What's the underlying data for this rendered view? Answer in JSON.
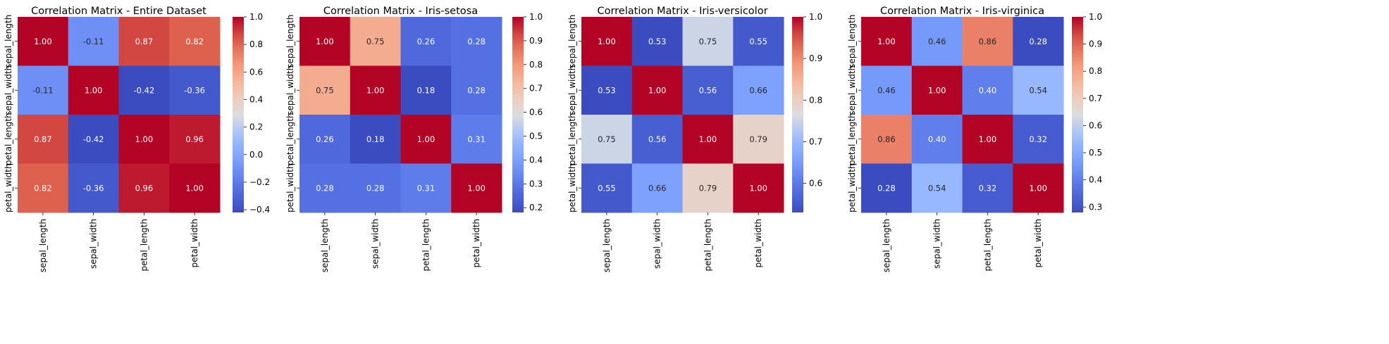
{
  "chart_data": [
    {
      "type": "heatmap",
      "title": "Correlation Matrix - Entire Dataset",
      "row_labels": [
        "sepal_length",
        "sepal_width",
        "petal_length",
        "petal_width"
      ],
      "col_labels": [
        "sepal_length",
        "sepal_width",
        "petal_length",
        "petal_width"
      ],
      "values": [
        [
          1.0,
          -0.11,
          0.87,
          0.82
        ],
        [
          -0.11,
          1.0,
          -0.42,
          -0.36
        ],
        [
          0.87,
          -0.42,
          1.0,
          0.96
        ],
        [
          0.82,
          -0.36,
          0.96,
          1.0
        ]
      ],
      "annotations": [
        [
          "1.00",
          "-0.11",
          "0.87",
          "0.82"
        ],
        [
          "-0.11",
          "1.00",
          "-0.42",
          "-0.36"
        ],
        [
          "0.87",
          "-0.42",
          "1.00",
          "0.96"
        ],
        [
          "0.82",
          "-0.36",
          "0.96",
          "1.00"
        ]
      ],
      "colormap": "coolwarm",
      "vmin": -0.42,
      "vmax": 1.0,
      "colorbar_ticks": [
        "1.0",
        "0.8",
        "0.6",
        "0.4",
        "0.2",
        "0.0",
        "−0.2",
        "−0.4"
      ],
      "colorbar_tick_values": [
        1.0,
        0.8,
        0.6,
        0.4,
        0.2,
        0.0,
        -0.2,
        -0.4
      ]
    },
    {
      "type": "heatmap",
      "title": "Correlation Matrix - Iris-setosa",
      "row_labels": [
        "sepal_length",
        "sepal_width",
        "petal_length",
        "petal_width"
      ],
      "col_labels": [
        "sepal_length",
        "sepal_width",
        "petal_length",
        "petal_width"
      ],
      "values": [
        [
          1.0,
          0.75,
          0.26,
          0.28
        ],
        [
          0.75,
          1.0,
          0.18,
          0.28
        ],
        [
          0.26,
          0.18,
          1.0,
          0.31
        ],
        [
          0.28,
          0.28,
          0.31,
          1.0
        ]
      ],
      "annotations": [
        [
          "1.00",
          "0.75",
          "0.26",
          "0.28"
        ],
        [
          "0.75",
          "1.00",
          "0.18",
          "0.28"
        ],
        [
          "0.26",
          "0.18",
          "1.00",
          "0.31"
        ],
        [
          "0.28",
          "0.28",
          "0.31",
          "1.00"
        ]
      ],
      "colormap": "coolwarm",
      "vmin": 0.18,
      "vmax": 1.0,
      "colorbar_ticks": [
        "1.0",
        "0.9",
        "0.8",
        "0.7",
        "0.6",
        "0.5",
        "0.4",
        "0.3",
        "0.2"
      ],
      "colorbar_tick_values": [
        1.0,
        0.9,
        0.8,
        0.7,
        0.6,
        0.5,
        0.4,
        0.3,
        0.2
      ]
    },
    {
      "type": "heatmap",
      "title": "Correlation Matrix - Iris-versicolor",
      "row_labels": [
        "sepal_length",
        "sepal_width",
        "petal_length",
        "petal_width"
      ],
      "col_labels": [
        "sepal_length",
        "sepal_width",
        "petal_length",
        "petal_width"
      ],
      "values": [
        [
          1.0,
          0.53,
          0.75,
          0.55
        ],
        [
          0.53,
          1.0,
          0.56,
          0.66
        ],
        [
          0.75,
          0.56,
          1.0,
          0.79
        ],
        [
          0.55,
          0.66,
          0.79,
          1.0
        ]
      ],
      "annotations": [
        [
          "1.00",
          "0.53",
          "0.75",
          "0.55"
        ],
        [
          "0.53",
          "1.00",
          "0.56",
          "0.66"
        ],
        [
          "0.75",
          "0.56",
          "1.00",
          "0.79"
        ],
        [
          "0.55",
          "0.66",
          "0.79",
          "1.00"
        ]
      ],
      "colormap": "coolwarm",
      "vmin": 0.53,
      "vmax": 1.0,
      "colorbar_ticks": [
        "1.0",
        "0.9",
        "0.8",
        "0.7",
        "0.6"
      ],
      "colorbar_tick_values": [
        1.0,
        0.9,
        0.8,
        0.7,
        0.6
      ]
    },
    {
      "type": "heatmap",
      "title": "Correlation Matrix - Iris-virginica",
      "row_labels": [
        "sepal_length",
        "sepal_width",
        "petal_length",
        "petal_width"
      ],
      "col_labels": [
        "sepal_length",
        "sepal_width",
        "petal_length",
        "petal_width"
      ],
      "values": [
        [
          1.0,
          0.46,
          0.86,
          0.28
        ],
        [
          0.46,
          1.0,
          0.4,
          0.54
        ],
        [
          0.86,
          0.4,
          1.0,
          0.32
        ],
        [
          0.28,
          0.54,
          0.32,
          1.0
        ]
      ],
      "annotations": [
        [
          "1.00",
          "0.46",
          "0.86",
          "0.28"
        ],
        [
          "0.46",
          "1.00",
          "0.40",
          "0.54"
        ],
        [
          "0.86",
          "0.40",
          "1.00",
          "0.32"
        ],
        [
          "0.28",
          "0.54",
          "0.32",
          "1.00"
        ]
      ],
      "colormap": "coolwarm",
      "vmin": 0.28,
      "vmax": 1.0,
      "colorbar_ticks": [
        "1.0",
        "0.9",
        "0.8",
        "0.7",
        "0.6",
        "0.5",
        "0.4",
        "0.3"
      ],
      "colorbar_tick_values": [
        1.0,
        0.9,
        0.8,
        0.7,
        0.6,
        0.5,
        0.4,
        0.3
      ]
    }
  ]
}
